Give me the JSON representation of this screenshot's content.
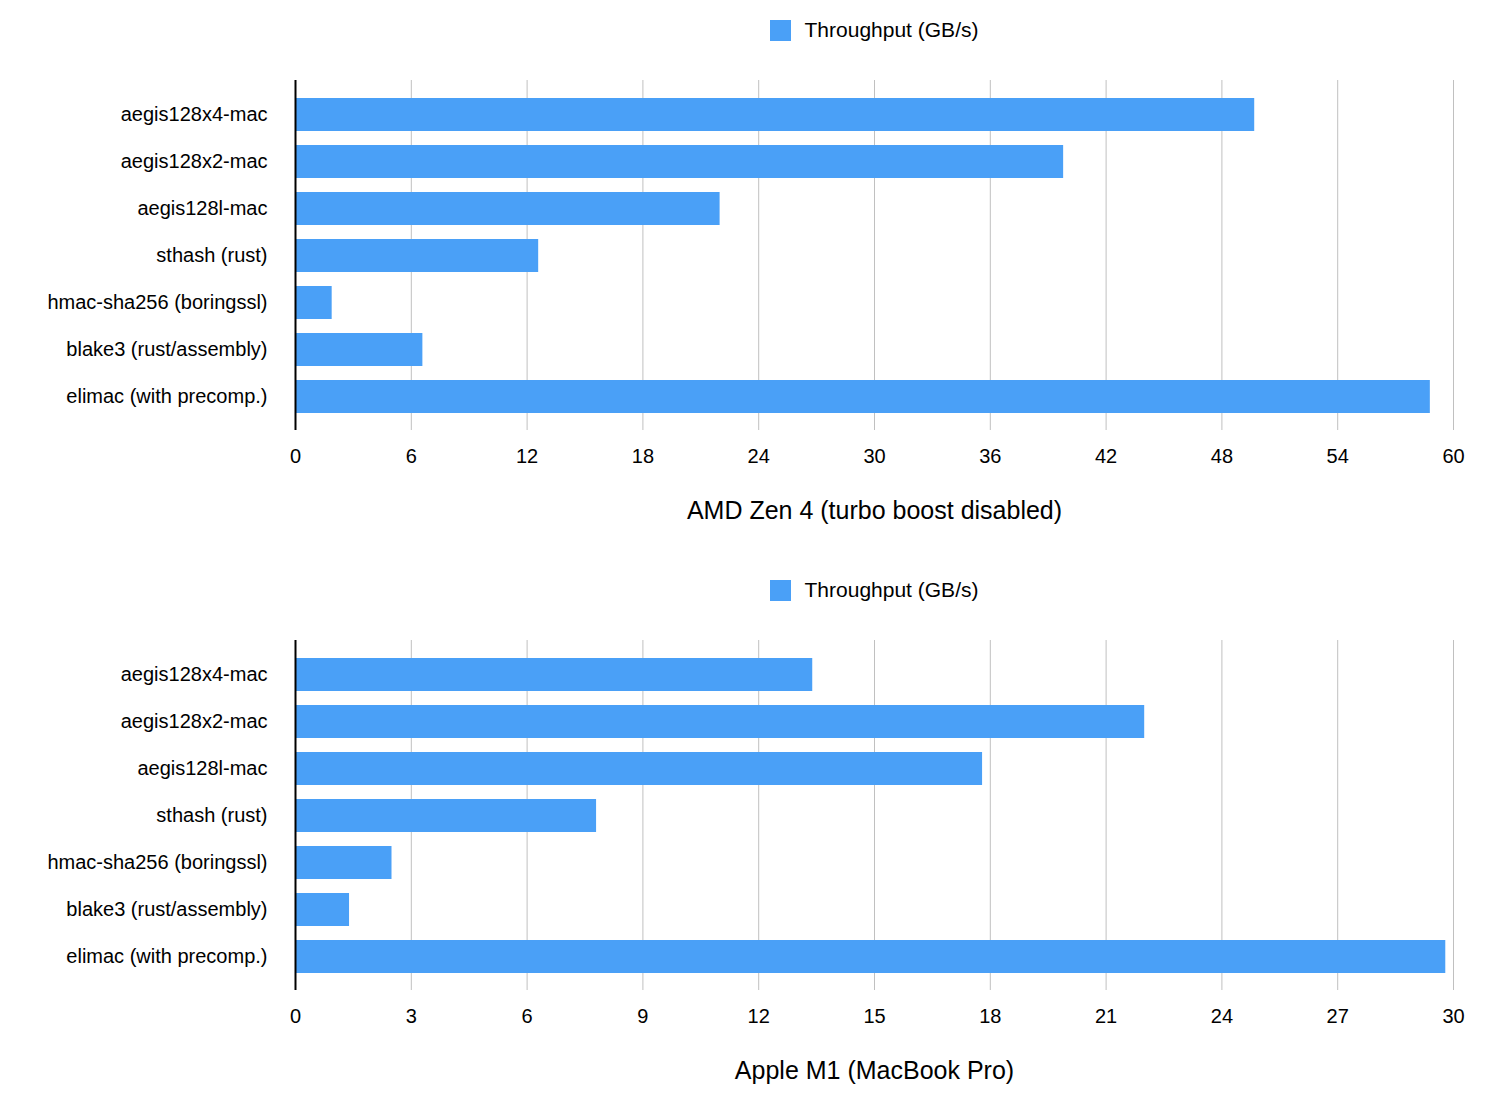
{
  "chart_data": [
    {
      "type": "bar",
      "orientation": "horizontal",
      "categories": [
        "aegis128x4-mac",
        "aegis128x2-mac",
        "aegis128l-mac",
        "sthash (rust)",
        "hmac-sha256 (boringssl)",
        "blake3 (rust/assembly)",
        "elimac (with precomp.)"
      ],
      "series": [
        {
          "name": "Throughput (GB/s)",
          "color": "#4aa0f7",
          "values": [
            49.7,
            39.8,
            22.0,
            12.6,
            1.9,
            6.6,
            58.8
          ]
        }
      ],
      "xlabel": "AMD Zen 4 (turbo boost disabled)",
      "xlim": [
        0,
        60
      ],
      "xticks": [
        0,
        6,
        12,
        18,
        24,
        30,
        36,
        42,
        48,
        54,
        60
      ],
      "grid": true,
      "legend": "top"
    },
    {
      "type": "bar",
      "orientation": "horizontal",
      "categories": [
        "aegis128x4-mac",
        "aegis128x2-mac",
        "aegis128l-mac",
        "sthash (rust)",
        "hmac-sha256 (boringssl)",
        "blake3 (rust/assembly)",
        "elimac (with precomp.)"
      ],
      "series": [
        {
          "name": "Throughput (GB/s)",
          "color": "#4aa0f7",
          "values": [
            13.4,
            22.0,
            17.8,
            7.8,
            2.5,
            1.4,
            29.8
          ]
        }
      ],
      "xlabel": "Apple M1 (MacBook Pro)",
      "xlim": [
        0,
        30
      ],
      "xticks": [
        0,
        3,
        6,
        9,
        12,
        15,
        18,
        21,
        24,
        27,
        30
      ],
      "grid": true,
      "legend": "top"
    }
  ]
}
